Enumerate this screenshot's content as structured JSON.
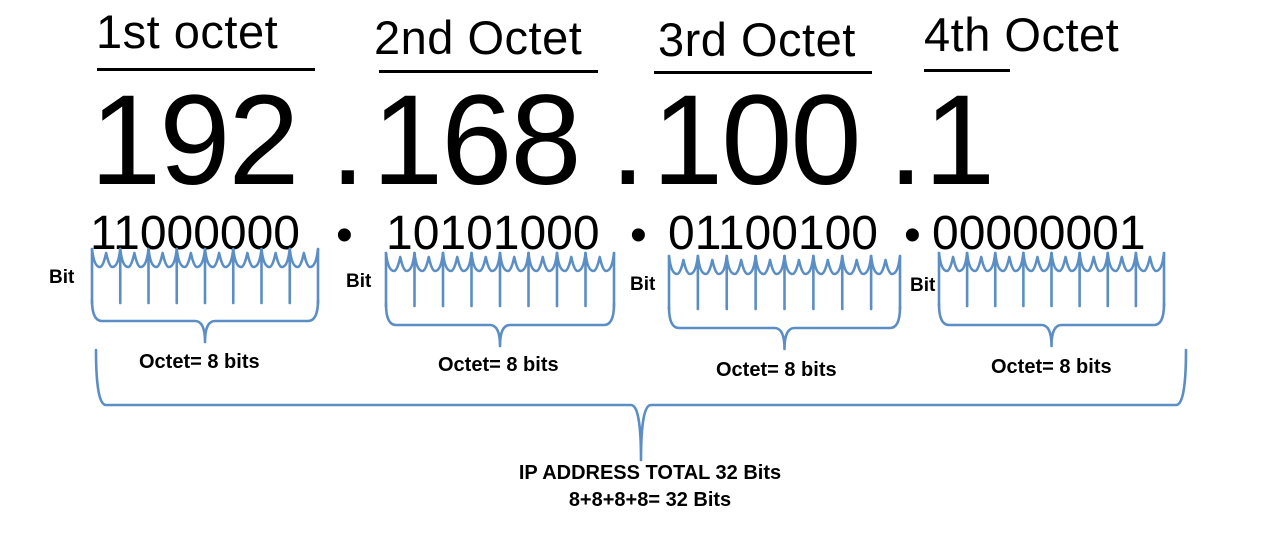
{
  "headers": [
    "1st octet",
    "2nd Octet",
    "3rd Octet",
    "4th Octet"
  ],
  "decimal_octets": [
    "192",
    "168",
    "100",
    "1"
  ],
  "decimal_dot": ".",
  "binary_octets": [
    "11000000",
    "10101000",
    "01100100",
    "00000001"
  ],
  "binary_dot": "•",
  "bit_label": "Bit",
  "octet_label": "Octet= 8 bits",
  "total_line1": "IP ADDRESS TOTAL 32 Bits",
  "total_line2": "8+8+8+8= 32 Bits",
  "colors": {
    "text": "#000000",
    "brace": "#5b8ec4"
  }
}
